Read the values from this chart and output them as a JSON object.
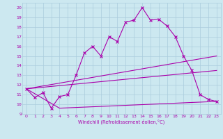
{
  "xlabel": "Windchill (Refroidissement éolien,°C)",
  "xlim": [
    -0.5,
    23.5
  ],
  "ylim": [
    9,
    20.5
  ],
  "yticks": [
    9,
    10,
    11,
    12,
    13,
    14,
    15,
    16,
    17,
    18,
    19,
    20
  ],
  "xticks": [
    0,
    1,
    2,
    3,
    4,
    5,
    6,
    7,
    8,
    9,
    10,
    11,
    12,
    13,
    14,
    15,
    16,
    17,
    18,
    19,
    20,
    21,
    22,
    23
  ],
  "bg_color": "#cce8f0",
  "line_color": "#aa00aa",
  "grid_color": "#aaccdd",
  "line1_x": [
    0,
    1,
    2,
    3,
    4,
    5,
    6,
    7,
    8,
    9,
    10,
    11,
    12,
    13,
    14,
    15,
    16,
    17,
    18,
    19,
    20,
    21,
    22,
    23
  ],
  "line1_y": [
    11.6,
    10.7,
    11.2,
    9.6,
    10.8,
    11.0,
    13.0,
    15.3,
    16.0,
    15.0,
    17.0,
    16.5,
    18.5,
    18.7,
    20.0,
    18.7,
    18.8,
    18.1,
    17.0,
    15.0,
    13.5,
    11.0,
    10.5,
    10.3
  ],
  "line2_x": [
    0,
    23
  ],
  "line2_y": [
    11.6,
    15.0
  ],
  "line3_x": [
    0,
    23
  ],
  "line3_y": [
    11.6,
    13.5
  ],
  "line4_x": [
    0,
    4,
    23
  ],
  "line4_y": [
    11.6,
    9.6,
    10.3
  ]
}
